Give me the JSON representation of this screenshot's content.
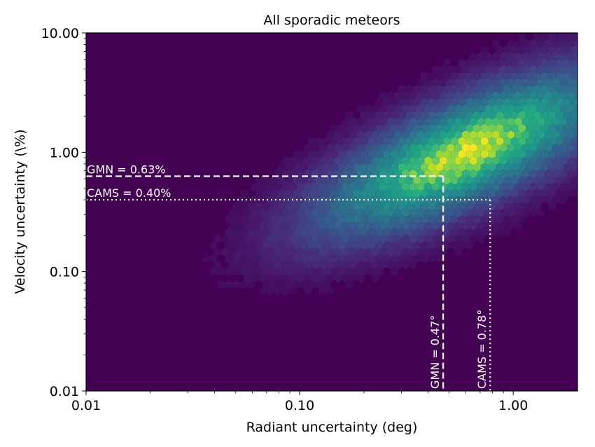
{
  "chart_data": {
    "type": "heatmap",
    "title": "All sporadic meteors",
    "xlabel": "Radiant uncertainty (deg)",
    "ylabel": "Velocity uncertainty (\\%)",
    "xscale": "log",
    "yscale": "log",
    "xlim": [
      0.01,
      2.0
    ],
    "ylim": [
      0.01,
      10.0
    ],
    "x_ticks": [
      0.01,
      0.1,
      1.0
    ],
    "x_tick_labels": [
      "0.01",
      "0.10",
      "1.00"
    ],
    "y_ticks": [
      0.01,
      0.1,
      1.0,
      10.0
    ],
    "y_tick_labels": [
      "0.01",
      "0.10",
      "1.00",
      "10.00"
    ],
    "grid": false,
    "colormap": "viridis",
    "bin_shape": "hexagon",
    "density_peak": {
      "x": 0.6,
      "y": 1.0
    },
    "annotations": [
      {
        "name": "GMN",
        "axis": "y",
        "value": 0.63,
        "x_extent": 0.47,
        "style": "dashed",
        "label": "GMN = 0.63%"
      },
      {
        "name": "CAMS",
        "axis": "y",
        "value": 0.4,
        "x_extent": 0.78,
        "style": "dotted",
        "label": "CAMS = 0.40%"
      },
      {
        "name": "GMN",
        "axis": "x",
        "value": 0.47,
        "y_extent": 0.63,
        "style": "dashed",
        "label": "GMN = 0.47°"
      },
      {
        "name": "CAMS",
        "axis": "x",
        "value": 0.78,
        "y_extent": 0.4,
        "style": "dotted",
        "label": "CAMS = 0.78°"
      }
    ]
  },
  "colors": {
    "background_bin": "#440154",
    "annotation_line": "#ffffff",
    "axis": "#000000"
  }
}
